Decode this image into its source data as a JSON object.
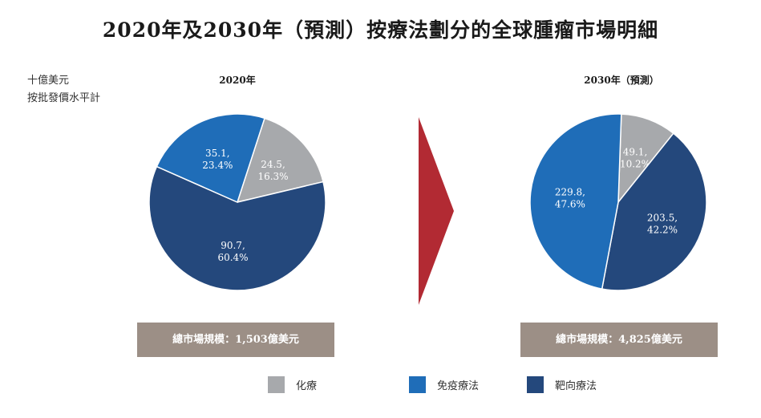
{
  "title": "2020年及2030年（預測）按療法劃分的全球腫瘤市場明細",
  "unit_lines": [
    "十億美元",
    "按批發價水平計"
  ],
  "colors": {
    "chemo": "#a7a9ac",
    "immuno": "#1f6db8",
    "targeted": "#24487c",
    "arrow": "#b22a33",
    "total_box": "#9c8f86"
  },
  "legend": [
    {
      "key": "chemo",
      "label": "化療"
    },
    {
      "key": "immuno",
      "label": "免疫療法"
    },
    {
      "key": "targeted",
      "label": "靶向療法"
    }
  ],
  "chart_data": [
    {
      "type": "pie",
      "title": "2020年",
      "total_label": "總市場規模：1,503億美元",
      "slices": [
        {
          "key": "chemo",
          "value": 24.5,
          "percent": 16.3,
          "label": "24.5,\n16.3%"
        },
        {
          "key": "targeted",
          "value": 90.7,
          "percent": 60.4,
          "label": "90.7,\n60.4%"
        },
        {
          "key": "immuno",
          "value": 35.1,
          "percent": 23.4,
          "label": "35.1,\n23.4%"
        }
      ]
    },
    {
      "type": "pie",
      "title": "2030年（預測）",
      "total_label": "總市場規模：4,825億美元",
      "slices": [
        {
          "key": "chemo",
          "value": 49.1,
          "percent": 10.2,
          "label": "49.1,\n10.2%"
        },
        {
          "key": "targeted",
          "value": 203.5,
          "percent": 42.2,
          "label": "203.5,\n42.2%"
        },
        {
          "key": "immuno",
          "value": 229.8,
          "percent": 47.6,
          "label": "229.8,\n47.6%"
        }
      ]
    }
  ]
}
